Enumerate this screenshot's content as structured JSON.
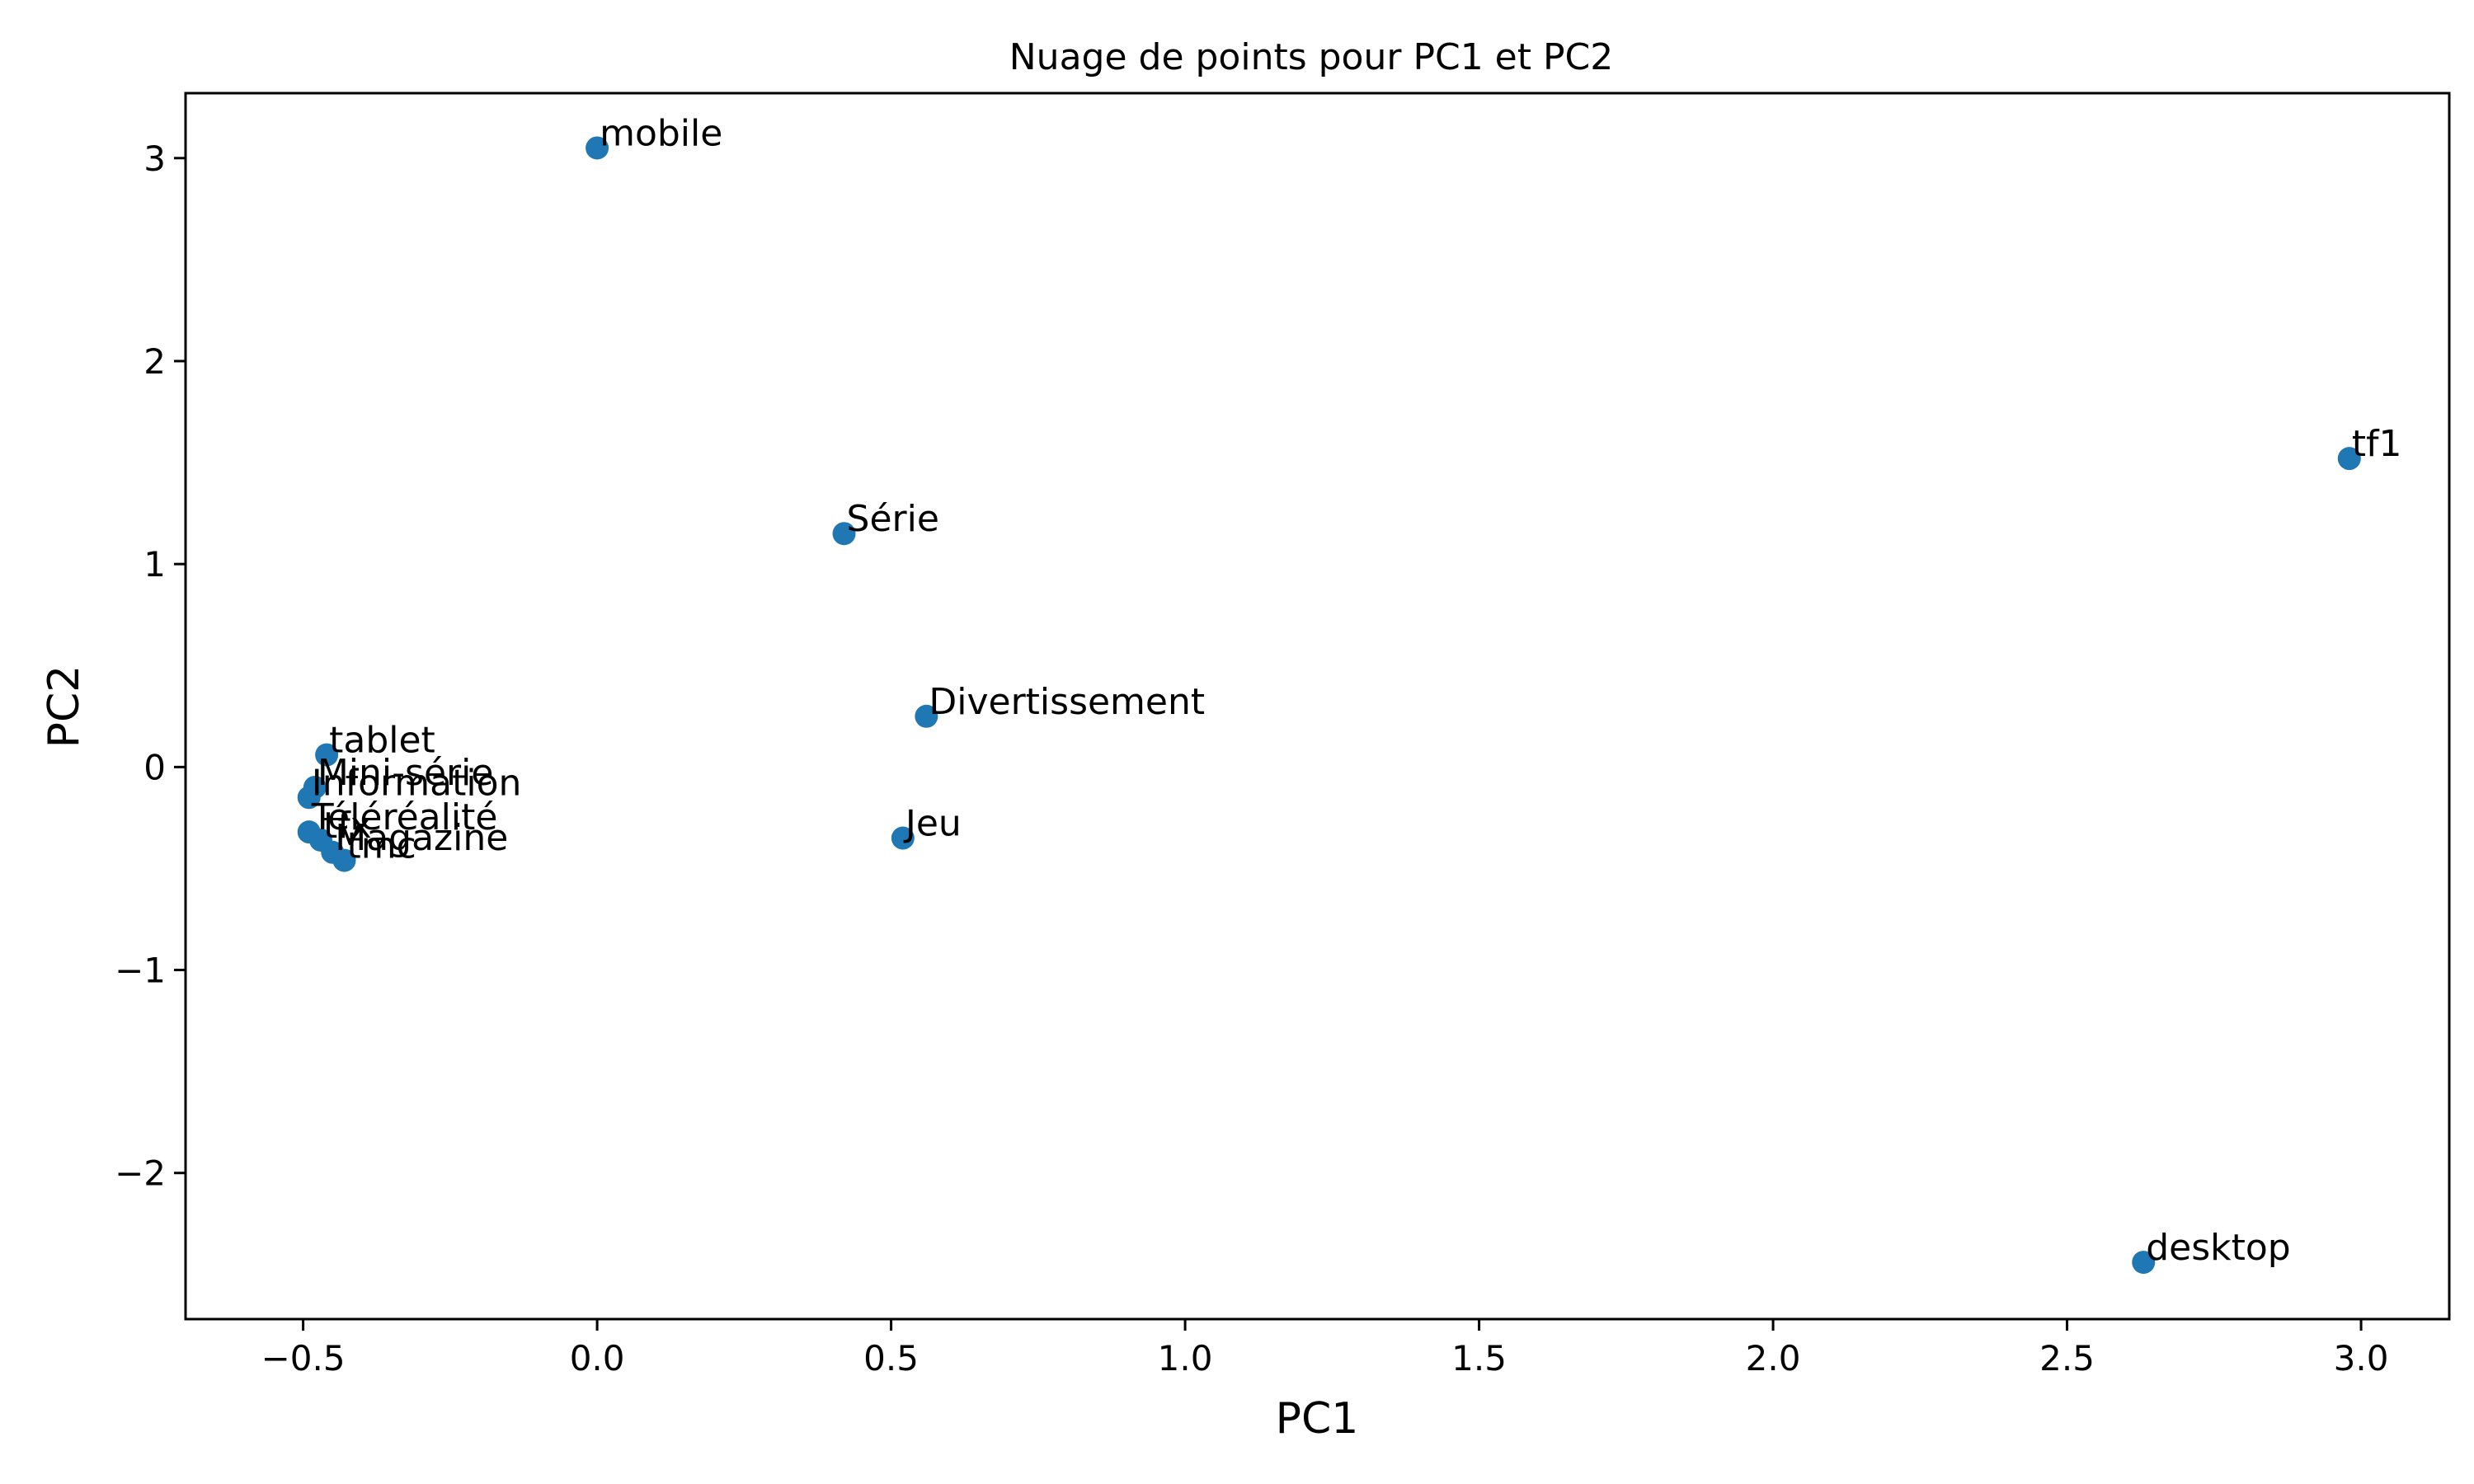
{
  "chart_data": {
    "type": "scatter",
    "title": "Nuage de points pour PC1 et PC2",
    "xlabel": "PC1",
    "ylabel": "PC2",
    "xlim": [
      -0.7,
      3.15
    ],
    "ylim": [
      -2.72,
      3.32
    ],
    "xticks": [
      -0.5,
      0.0,
      0.5,
      1.0,
      1.5,
      2.0,
      2.5,
      3.0
    ],
    "xtick_labels": [
      "−0.5",
      "0.0",
      "0.5",
      "1.0",
      "1.5",
      "2.0",
      "2.5",
      "3.0"
    ],
    "yticks": [
      -2,
      -1,
      0,
      1,
      2,
      3
    ],
    "ytick_labels": [
      "−2",
      "−1",
      "0",
      "1",
      "2",
      "3"
    ],
    "grid": false,
    "legend": false,
    "point_color": "#1f77b4",
    "points": [
      {
        "label": "mobile",
        "x": 0.0,
        "y": 3.05
      },
      {
        "label": "tf1",
        "x": 2.98,
        "y": 1.52
      },
      {
        "label": "Série",
        "x": 0.42,
        "y": 1.15
      },
      {
        "label": "Divertissement",
        "x": 0.56,
        "y": 0.25
      },
      {
        "label": "Jeu",
        "x": 0.52,
        "y": -0.35
      },
      {
        "label": "desktop",
        "x": 2.63,
        "y": -2.44
      },
      {
        "label": "tablet",
        "x": -0.46,
        "y": 0.06
      },
      {
        "label": "Mini-série",
        "x": -0.48,
        "y": -0.1
      },
      {
        "label": "Information",
        "x": -0.49,
        "y": -0.15
      },
      {
        "label": "Téléréalité",
        "x": -0.49,
        "y": -0.32
      },
      {
        "label": "tfx",
        "x": -0.47,
        "y": -0.36
      },
      {
        "label": "Magazine",
        "x": -0.45,
        "y": -0.42
      },
      {
        "label": "tmc",
        "x": -0.43,
        "y": -0.46
      }
    ]
  }
}
